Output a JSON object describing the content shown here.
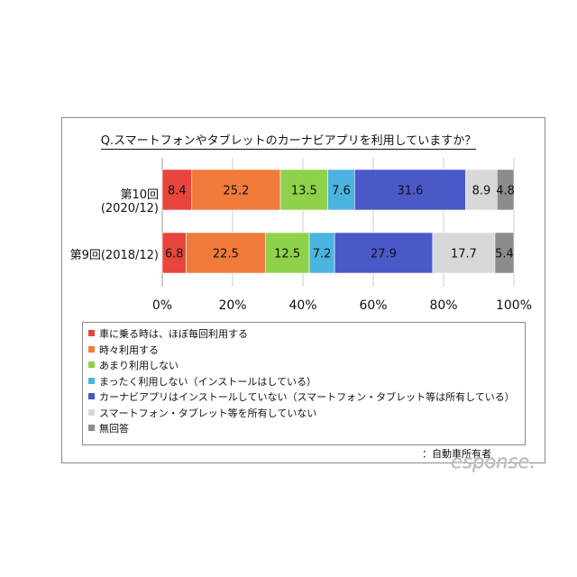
{
  "title": "Q.スマートフォンやタブレットのカーナビアプリを利用していますか？",
  "source_note": "：自動車所有者",
  "watermark": "esponse.",
  "chart_data": {
    "type": "bar",
    "orientation": "horizontal",
    "stacked": true,
    "categories": [
      "第10回(2020/12)",
      "第9回(2018/12)"
    ],
    "series": [
      {
        "name": "車に乗る時は、ほぼ毎回利用する",
        "color": "#e8453c",
        "values": [
          8.4,
          6.8
        ]
      },
      {
        "name": "時々利用する",
        "color": "#f07a3a",
        "values": [
          25.2,
          22.5
        ]
      },
      {
        "name": "あまり利用しない",
        "color": "#8ed24a",
        "values": [
          13.5,
          12.5
        ]
      },
      {
        "name": "まったく利用しない（インストールはしている）",
        "color": "#4ab4e0",
        "values": [
          7.6,
          7.2
        ]
      },
      {
        "name": "カーナビアプリはインストールしていない（スマートフォン・タブレット等は所有している）",
        "color": "#4a58c8",
        "values": [
          31.6,
          27.9
        ]
      },
      {
        "name": "スマートフォン・タブレット等を所有していない",
        "color": "#d8d8d8",
        "values": [
          8.9,
          17.7
        ]
      },
      {
        "name": "無回答",
        "color": "#8c8c8c",
        "values": [
          4.8,
          5.4
        ]
      }
    ],
    "xaxis": {
      "ticks": [
        "0%",
        "20%",
        "40%",
        "60%",
        "80%",
        "100%"
      ],
      "range": [
        0,
        100
      ]
    },
    "grid": true,
    "legend_position": "bottom"
  }
}
